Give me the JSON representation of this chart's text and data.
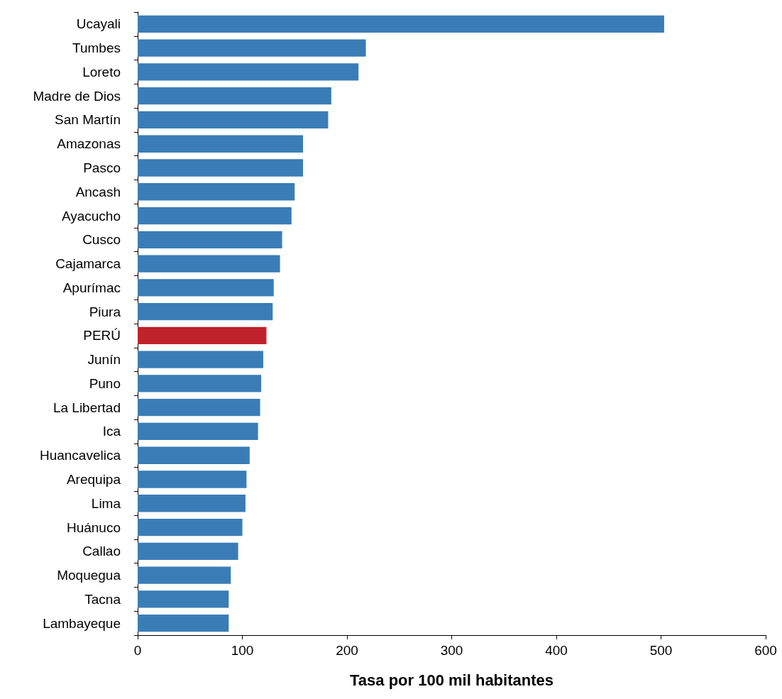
{
  "chart_data": {
    "type": "bar",
    "orientation": "horizontal",
    "xlabel": "Tasa por 100 mil habitantes",
    "categories": [
      "Ucayali",
      "Tumbes",
      "Loreto",
      "Madre de Dios",
      "San Martín",
      "Amazonas",
      "Pasco",
      "Ancash",
      "Ayacucho",
      "Cusco",
      "Cajamarca",
      "Apurímac",
      "Piura",
      "PERÚ",
      "Junín",
      "Puno",
      "La Libertad",
      "Ica",
      "Huancavelica",
      "Arequipa",
      "Lima",
      "Huánuco",
      "Callao",
      "Moquegua",
      "Tacna",
      "Lambayeque"
    ],
    "values": [
      503,
      218,
      211,
      185,
      182,
      158,
      158,
      150,
      147,
      138,
      136,
      130,
      129,
      123,
      120,
      118,
      117,
      115,
      107,
      104,
      103,
      100,
      96,
      89,
      87,
      87
    ],
    "colors": [
      "#3a7db6",
      "#3a7db6",
      "#3a7db6",
      "#3a7db6",
      "#3a7db6",
      "#3a7db6",
      "#3a7db6",
      "#3a7db6",
      "#3a7db6",
      "#3a7db6",
      "#3a7db6",
      "#3a7db6",
      "#3a7db6",
      "#c0222b",
      "#3a7db6",
      "#3a7db6",
      "#3a7db6",
      "#3a7db6",
      "#3a7db6",
      "#3a7db6",
      "#3a7db6",
      "#3a7db6",
      "#3a7db6",
      "#3a7db6",
      "#3a7db6",
      "#3a7db6"
    ],
    "xlim": [
      0,
      600
    ],
    "xticks": [
      0,
      100,
      200,
      300,
      400,
      500,
      600
    ],
    "grid": false
  }
}
